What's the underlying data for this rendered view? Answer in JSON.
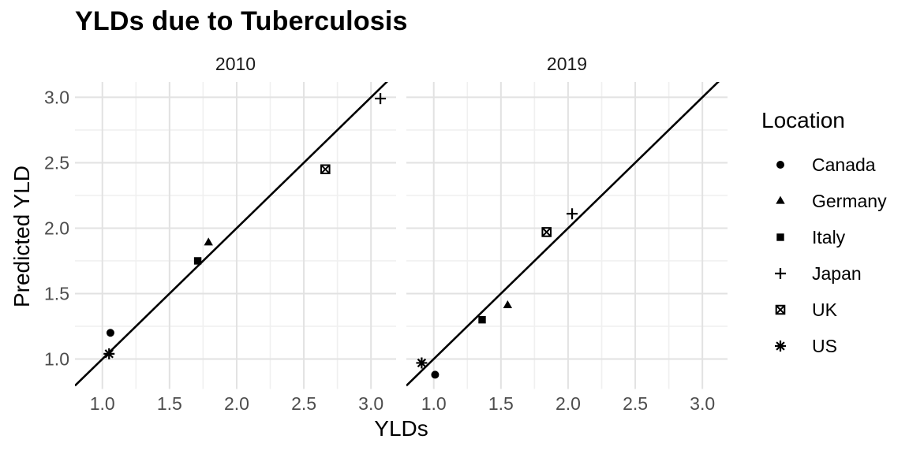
{
  "chart_data": {
    "type": "scatter",
    "title": "YLDs due to Tuberculosis",
    "xlabel": "YLDs",
    "ylabel": "Predicted YLD",
    "facets": [
      {
        "label": "2010"
      },
      {
        "label": "2019"
      }
    ],
    "x_ticks": [
      1.0,
      1.5,
      2.0,
      2.5,
      3.0
    ],
    "y_ticks": [
      1.0,
      1.5,
      2.0,
      2.5,
      3.0
    ],
    "x_tick_labels": [
      "1.0",
      "1.5",
      "2.0",
      "2.5",
      "3.0"
    ],
    "y_tick_labels": [
      "1.0",
      "1.5",
      "2.0",
      "2.5",
      "3.0"
    ],
    "x_minor_ticks": [
      1.25,
      1.75,
      2.25,
      2.75
    ],
    "y_minor_ticks": [
      1.25,
      1.75,
      2.25,
      2.75
    ],
    "xlim": [
      0.796,
      3.187
    ],
    "ylim": [
      0.771,
      3.117
    ],
    "grid": {
      "major_color": "#e2e2e2",
      "minor_color": "#f0f0f0",
      "background": "#ffffff"
    },
    "reference_line": {
      "slope": 1,
      "intercept": 0,
      "color": "#000000"
    },
    "point_color": "#000000",
    "axis_text_color": "#4d4d4d",
    "strip_text_color": "#1a1a1a",
    "legend": {
      "title": "Location",
      "position": "right"
    },
    "series": [
      {
        "name": "Canada",
        "marker": "filled-circle",
        "points": {
          "2010": [
            1.06,
            1.2
          ],
          "2019": [
            1.01,
            0.88
          ]
        }
      },
      {
        "name": "Germany",
        "marker": "filled-triangle",
        "points": {
          "2010": [
            1.79,
            1.89
          ],
          "2019": [
            1.55,
            1.41
          ]
        }
      },
      {
        "name": "Italy",
        "marker": "filled-square",
        "points": {
          "2010": [
            1.71,
            1.75
          ],
          "2019": [
            1.36,
            1.3
          ]
        }
      },
      {
        "name": "Japan",
        "marker": "plus",
        "points": {
          "2010": [
            3.07,
            2.99
          ],
          "2019": [
            2.03,
            2.11
          ]
        }
      },
      {
        "name": "UK",
        "marker": "square-x",
        "points": {
          "2010": [
            2.66,
            2.45
          ],
          "2019": [
            1.84,
            1.97
          ]
        }
      },
      {
        "name": "US",
        "marker": "asterisk",
        "points": {
          "2010": [
            1.05,
            1.04
          ],
          "2019": [
            0.91,
            0.97
          ]
        }
      }
    ]
  }
}
